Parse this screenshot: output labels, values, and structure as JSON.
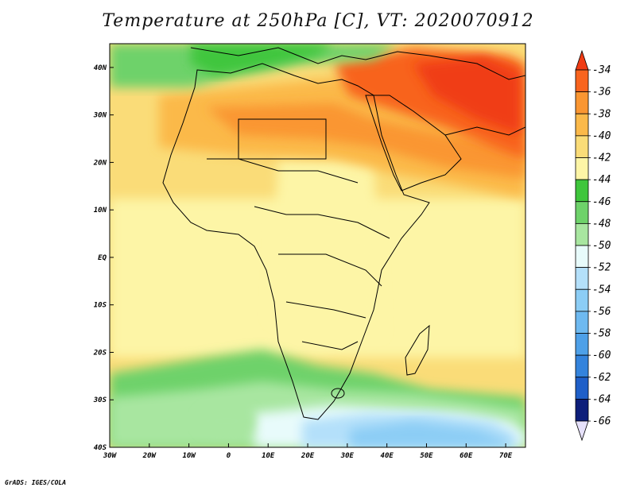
{
  "title": "Temperature at 250hPa [C], VT: 2020070912",
  "footer": "GrADS: IGES/COLA",
  "map": {
    "region": "Africa",
    "projection": "lat-lon",
    "extent": {
      "lon_min": -30,
      "lon_max": 75,
      "lat_min": -40,
      "lat_max": 45
    }
  },
  "axes": {
    "lat_ticks": [
      {
        "label": "40N",
        "value": 40
      },
      {
        "label": "30N",
        "value": 30
      },
      {
        "label": "20N",
        "value": 20
      },
      {
        "label": "10N",
        "value": 10
      },
      {
        "label": "EQ",
        "value": 0
      },
      {
        "label": "10S",
        "value": -10
      },
      {
        "label": "20S",
        "value": -20
      },
      {
        "label": "30S",
        "value": -30
      },
      {
        "label": "40S",
        "value": -40
      }
    ],
    "lon_ticks": [
      {
        "label": "30W",
        "value": -30
      },
      {
        "label": "20W",
        "value": -20
      },
      {
        "label": "10W",
        "value": -10
      },
      {
        "label": "0",
        "value": 0
      },
      {
        "label": "10E",
        "value": 10
      },
      {
        "label": "20E",
        "value": 20
      },
      {
        "label": "30E",
        "value": 30
      },
      {
        "label": "40E",
        "value": 40
      },
      {
        "label": "50E",
        "value": 50
      },
      {
        "label": "60E",
        "value": 60
      },
      {
        "label": "70E",
        "value": 70
      }
    ]
  },
  "colorbar": {
    "labels": [
      "-34",
      "-36",
      "-38",
      "-40",
      "-42",
      "-44",
      "-46",
      "-48",
      "-50",
      "-52",
      "-54",
      "-56",
      "-58",
      "-60",
      "-62",
      "-64",
      "-66"
    ],
    "colors": [
      "#f03c14",
      "#f8641e",
      "#fa9632",
      "#fbb94a",
      "#fadc78",
      "#fdf5a6",
      "#3fc63c",
      "#6ed26a",
      "#a8e6a0",
      "#e8fbfb",
      "#b4e0fa",
      "#8ccdf5",
      "#6eb9f0",
      "#4ea0e8",
      "#3483dc",
      "#1f5fc8",
      "#0d1e7a",
      "#e6e1fa"
    ]
  }
}
